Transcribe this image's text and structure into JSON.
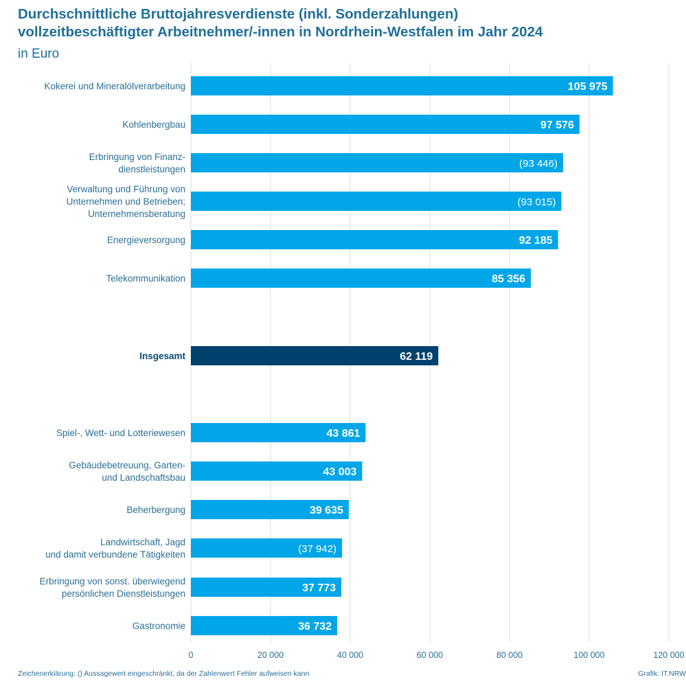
{
  "title_line1": "Durchschnittliche Bruttojahresverdienste (inkl. Sonderzahlungen)",
  "title_line2": "vollzeitbeschäftigter Arbeitnehmer/-innen in Nordrhein-Westfalen im Jahr 2024",
  "subtitle": "in Euro",
  "footnote": "Zeichenerklärung: () Aussagewert eingeschränkt, da der Zahlenwert Fehler aufweisen kann",
  "source": "Grafik: IT.NRW",
  "colors": {
    "bar": "#00a6e8",
    "total_bar": "#00426e",
    "label": "#2b6f95",
    "total_label": "#0a4a72",
    "grid": "#d9d9d9"
  },
  "chart_data": {
    "type": "bar",
    "orientation": "horizontal",
    "xlim": [
      0,
      120000
    ],
    "xticks": [
      0,
      20000,
      40000,
      60000,
      80000,
      100000,
      120000
    ],
    "xtick_labels": [
      "0",
      "20 000",
      "40 000",
      "60 000",
      "80 000",
      "100 000",
      "120 000"
    ],
    "grid": true,
    "bars": [
      {
        "label": [
          "Kokerei und Mineralölverarbeitung"
        ],
        "value": 105975,
        "value_label": "105 975",
        "restricted": false,
        "total": false
      },
      {
        "label": [
          "Kohlenbergbau"
        ],
        "value": 97576,
        "value_label": "97 576",
        "restricted": false,
        "total": false
      },
      {
        "label": [
          "Erbringung von Finanz-",
          "dienstleistungen"
        ],
        "value": 93446,
        "value_label": "(93 446)",
        "restricted": true,
        "total": false
      },
      {
        "label": [
          "Verwaltung und Führung von",
          "Unternehmen und Betrieben;",
          "Unternehmensberatung"
        ],
        "value": 93015,
        "value_label": "(93 015)",
        "restricted": true,
        "total": false
      },
      {
        "label": [
          "Energieversorgung"
        ],
        "value": 92185,
        "value_label": "92 185",
        "restricted": false,
        "total": false
      },
      {
        "label": [
          "Telekommunikation"
        ],
        "value": 85356,
        "value_label": "85 356",
        "restricted": false,
        "total": false
      },
      {
        "label": [
          "Insgesamt"
        ],
        "value": 62119,
        "value_label": "62 119",
        "restricted": false,
        "total": true
      },
      {
        "label": [
          "Spiel-, Wett- und Lotteriewesen"
        ],
        "value": 43861,
        "value_label": "43 861",
        "restricted": false,
        "total": false
      },
      {
        "label": [
          "Gebäudebetreuung, Garten-",
          "und Landschaftsbau"
        ],
        "value": 43003,
        "value_label": "43 003",
        "restricted": false,
        "total": false
      },
      {
        "label": [
          "Beherbergung"
        ],
        "value": 39635,
        "value_label": "39 635",
        "restricted": false,
        "total": false
      },
      {
        "label": [
          "Landwirtschaft, Jagd",
          "und damit verbundene Tätigkeiten"
        ],
        "value": 37942,
        "value_label": "(37 942)",
        "restricted": true,
        "total": false
      },
      {
        "label": [
          "Erbringung von sonst. überwiegend",
          "persönlichen Dienstleistungen"
        ],
        "value": 37773,
        "value_label": "37 773",
        "restricted": false,
        "total": false
      },
      {
        "label": [
          "Gastronomie"
        ],
        "value": 36732,
        "value_label": "36 732",
        "restricted": false,
        "total": false
      }
    ]
  }
}
